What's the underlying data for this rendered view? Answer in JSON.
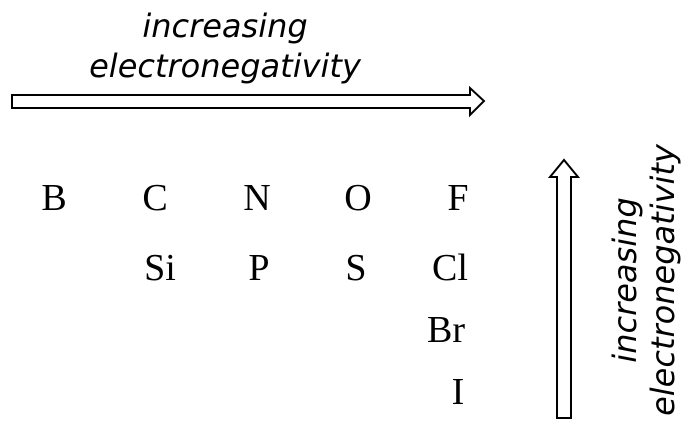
{
  "horizontal_caption": {
    "line1": "increasing",
    "line2": "electronegativity"
  },
  "vertical_caption": {
    "line1": "increasing",
    "line2": "electronegativity"
  },
  "elements": {
    "row1": [
      "B",
      "C",
      "N",
      "O",
      "F"
    ],
    "row2": [
      "Si",
      "P",
      "S",
      "Cl"
    ],
    "halogens_lower": [
      "Br",
      "I"
    ]
  },
  "colors": {
    "ink": "#000000",
    "background": "#ffffff"
  },
  "icons": {
    "horizontal_arrow": "arrow-right-outline-icon",
    "vertical_arrow": "arrow-up-outline-icon"
  }
}
